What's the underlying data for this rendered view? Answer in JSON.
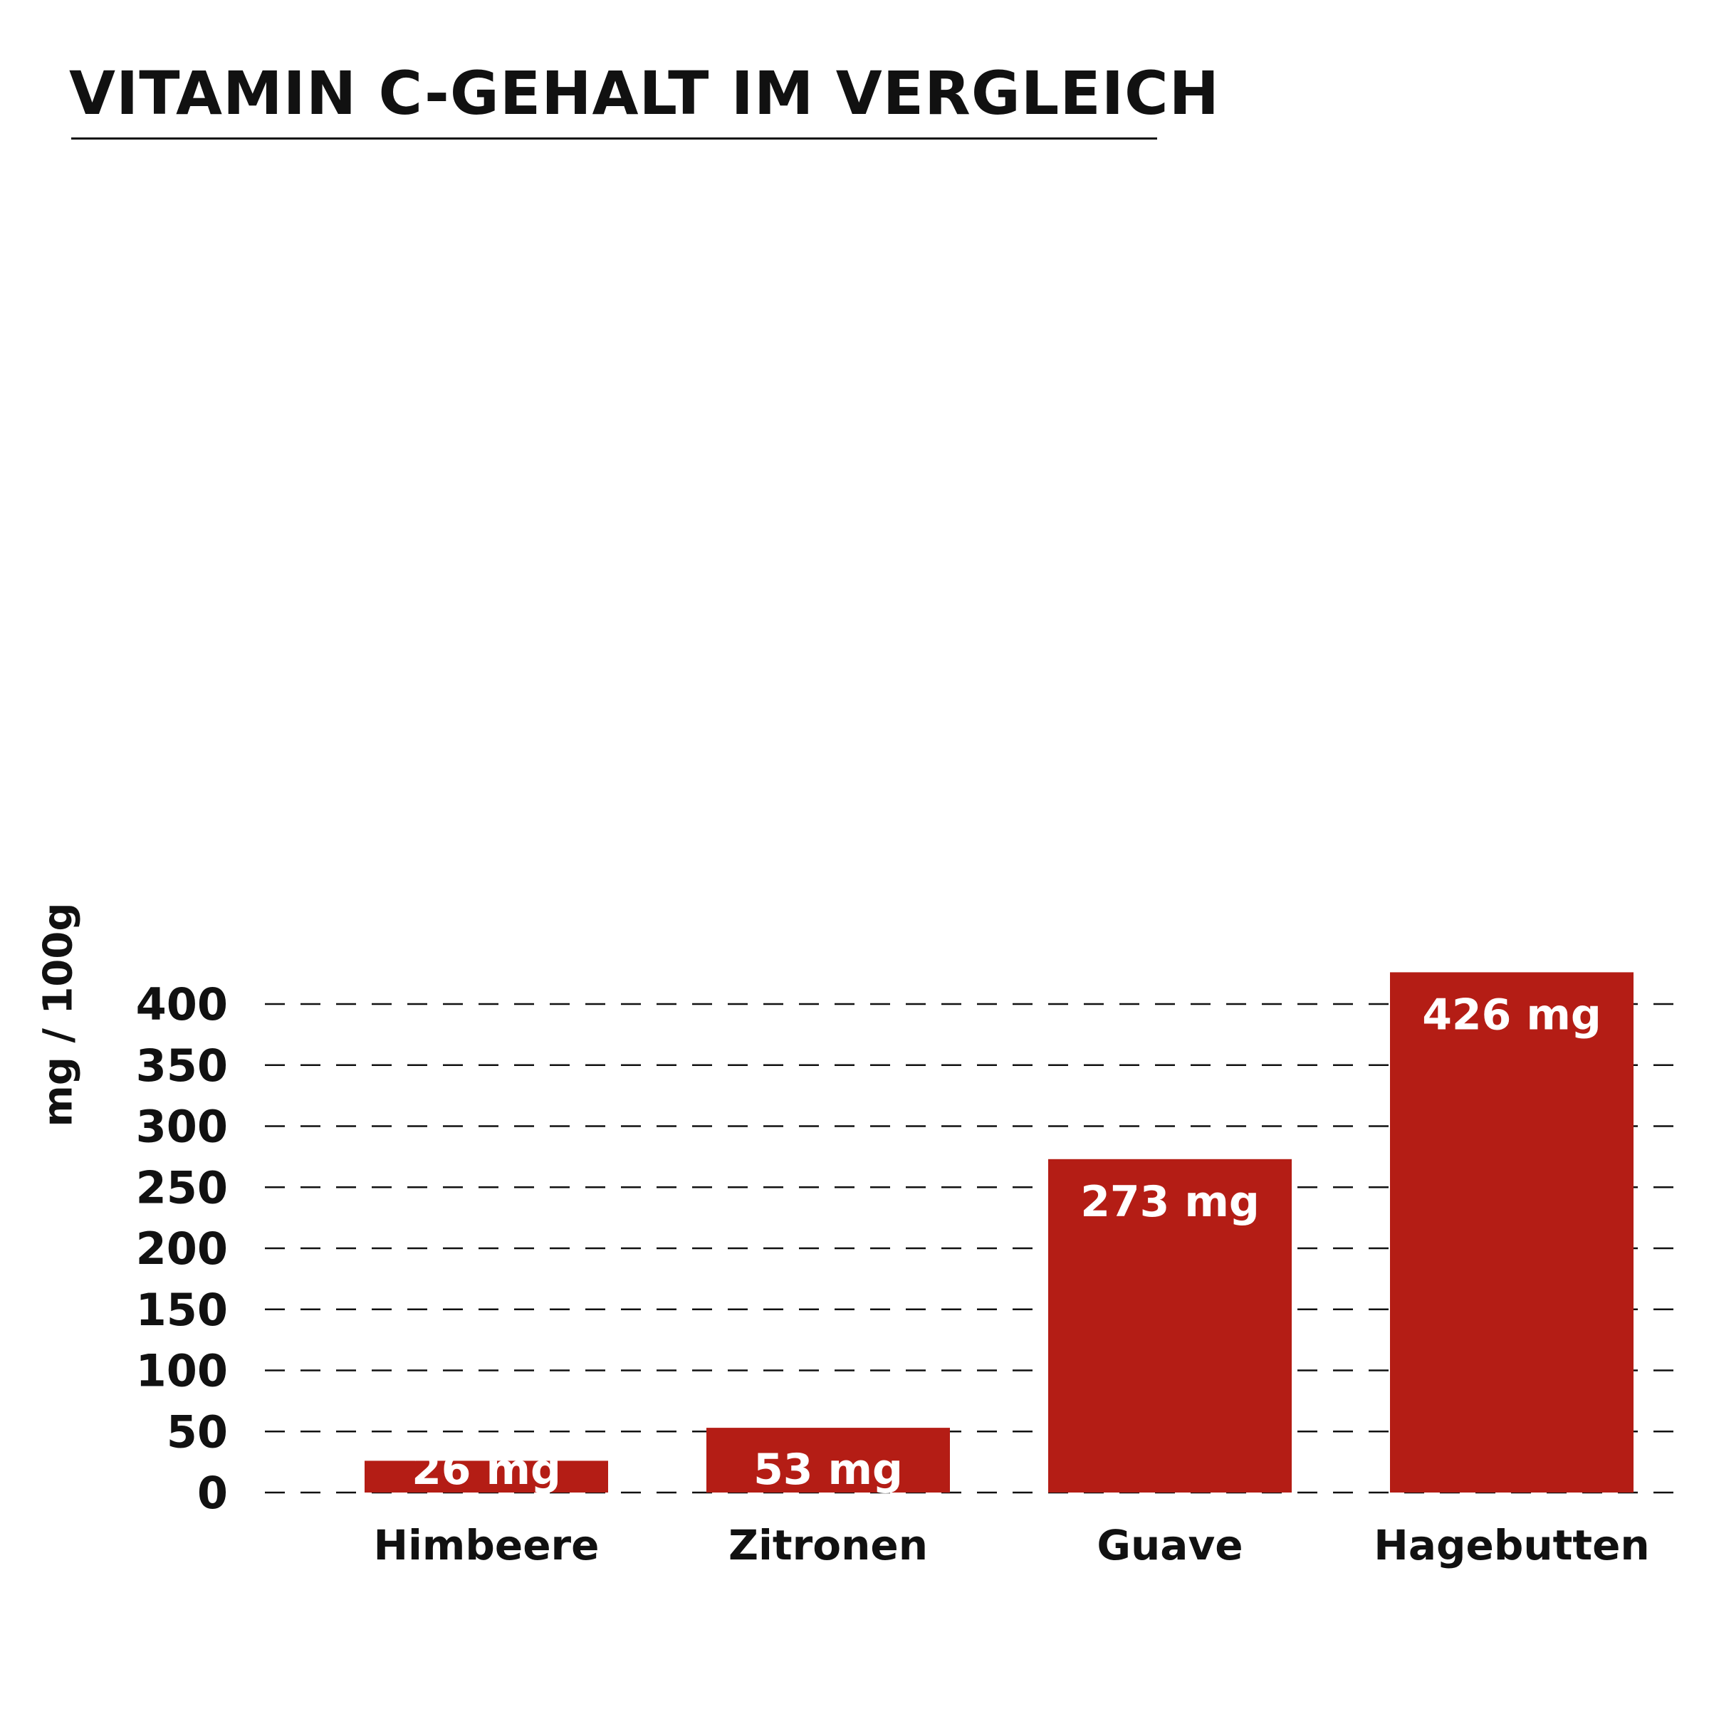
{
  "chart_data": {
    "type": "bar",
    "title": "VITAMIN C-GEHALT IM VERGLEICH",
    "xlabel": "",
    "ylabel": "mg / 100g",
    "categories": [
      "Himbeere",
      "Zitronen",
      "Guave",
      "Hagebutten"
    ],
    "values": [
      26,
      53,
      273,
      426
    ],
    "value_labels": [
      "26 mg",
      "53 mg",
      "273 mg",
      "426 mg"
    ],
    "yticks": [
      0,
      50,
      100,
      150,
      200,
      250,
      300,
      350,
      400
    ],
    "ylim": [
      0,
      426
    ],
    "grid": "dashed",
    "bar_color": "#b41d15",
    "label_color": "#ffffff",
    "text_color": "#111111"
  }
}
